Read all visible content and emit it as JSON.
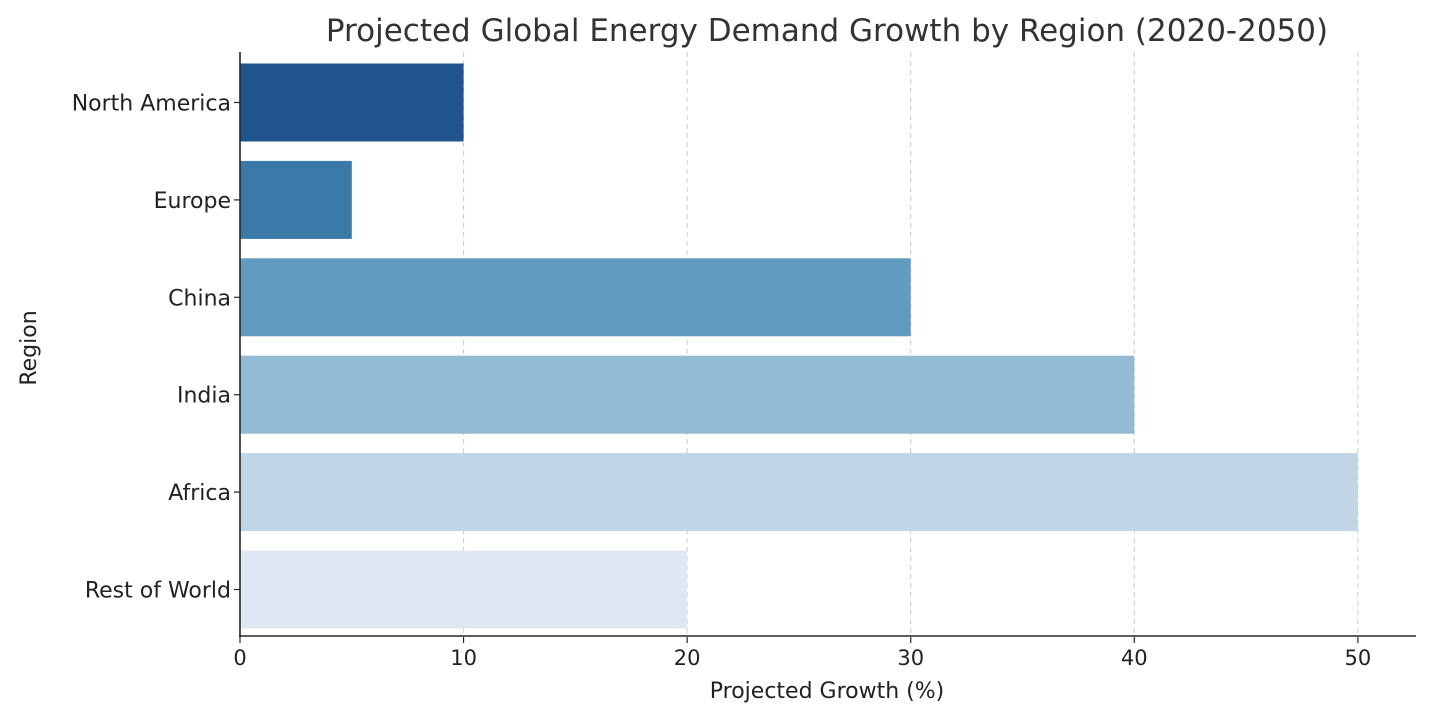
{
  "chart_data": {
    "type": "bar",
    "orientation": "horizontal",
    "title": "Projected Global Energy Demand Growth by Region (2020-2050)",
    "xlabel": "Projected Growth (%)",
    "ylabel": "Region",
    "categories": [
      "North America",
      "Europe",
      "China",
      "India",
      "Africa",
      "Rest of World"
    ],
    "values": [
      10,
      5,
      30,
      40,
      50,
      20
    ],
    "colors": [
      "#1f558c",
      "#3b79a8",
      "#629bc0",
      "#93bbd3",
      "#c0d5e5",
      "#dee8f2"
    ],
    "xlim": [
      0,
      52.6
    ],
    "xticks": [
      0,
      10,
      20,
      30,
      40,
      50
    ],
    "grid": "vertical-dashed",
    "legend": "none"
  }
}
